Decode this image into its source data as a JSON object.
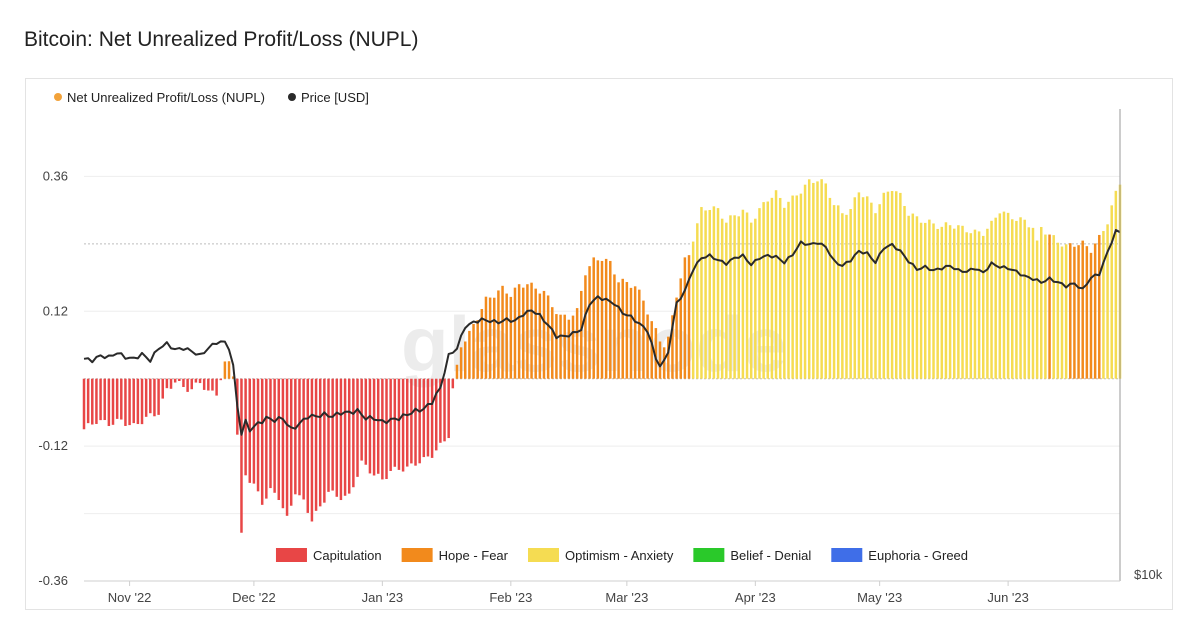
{
  "page_title": "Bitcoin: Net Unrealized Profit/Loss (NUPL)",
  "watermark": "glassnode",
  "colors": {
    "capitulation": "#e84646",
    "hope_fear": "#f28a1c",
    "optimism_anxiety": "#f5dc52",
    "belief_denial": "#2ac92a",
    "euphoria_greed": "#3f6ee8",
    "price_line": "#2a2a2a",
    "nupl_legend_dot": "#f2a23a"
  },
  "chart_data": {
    "type": "bar",
    "title": "Bitcoin: Net Unrealized Profit/Loss (NUPL)",
    "series_legend": [
      {
        "name": "Net Unrealized Profit/Loss (NUPL)",
        "color_key": "nupl_legend_dot"
      },
      {
        "name": "Price [USD]",
        "color_key": "price_line"
      }
    ],
    "zone_legend": [
      {
        "name": "Capitulation",
        "color_key": "capitulation"
      },
      {
        "name": "Hope - Fear",
        "color_key": "hope_fear"
      },
      {
        "name": "Optimism - Anxiety",
        "color_key": "optimism_anxiety"
      },
      {
        "name": "Belief - Denial",
        "color_key": "belief_denial"
      },
      {
        "name": "Euphoria - Greed",
        "color_key": "euphoria_greed"
      }
    ],
    "y_axis": {
      "ticks": [
        "0.36",
        "0.12",
        "-0.12",
        "-0.36"
      ],
      "tick_values": [
        0.36,
        0.12,
        -0.12,
        -0.36
      ],
      "ylim": [
        -0.36,
        0.48
      ]
    },
    "right_axis_tick": "$10k",
    "x_axis": {
      "tick_labels": [
        "Nov '22",
        "Dec '22",
        "Jan '23",
        "Feb '23",
        "Mar '23",
        "Apr '23",
        "May '23",
        "Jun '23"
      ],
      "tick_days": [
        11,
        41,
        72,
        103,
        131,
        162,
        192,
        223
      ],
      "start": "2022-10-21",
      "days": 250
    },
    "nupl_anchors": [
      [
        0,
        -0.09
      ],
      [
        3,
        -0.075
      ],
      [
        6,
        -0.08
      ],
      [
        9,
        -0.075
      ],
      [
        12,
        -0.085
      ],
      [
        15,
        -0.07
      ],
      [
        18,
        -0.06
      ],
      [
        20,
        -0.02
      ],
      [
        22,
        -0.005
      ],
      [
        24,
        -0.015
      ],
      [
        26,
        -0.02
      ],
      [
        28,
        -0.005
      ],
      [
        30,
        -0.025
      ],
      [
        32,
        -0.025
      ],
      [
        34,
        0.025
      ],
      [
        35,
        0.03
      ],
      [
        36,
        0.01
      ],
      [
        37,
        -0.1
      ],
      [
        38,
        -0.28
      ],
      [
        39,
        -0.17
      ],
      [
        41,
        -0.19
      ],
      [
        43,
        -0.22
      ],
      [
        45,
        -0.2
      ],
      [
        47,
        -0.21
      ],
      [
        49,
        -0.25
      ],
      [
        51,
        -0.2
      ],
      [
        53,
        -0.22
      ],
      [
        55,
        -0.25
      ],
      [
        57,
        -0.23
      ],
      [
        59,
        -0.2
      ],
      [
        61,
        -0.21
      ],
      [
        64,
        -0.21
      ],
      [
        67,
        -0.15
      ],
      [
        70,
        -0.17
      ],
      [
        72,
        -0.18
      ],
      [
        74,
        -0.165
      ],
      [
        76,
        -0.16
      ],
      [
        78,
        -0.16
      ],
      [
        80,
        -0.15
      ],
      [
        82,
        -0.145
      ],
      [
        84,
        -0.135
      ],
      [
        86,
        -0.12
      ],
      [
        88,
        -0.1
      ],
      [
        89,
        -0.02
      ],
      [
        90,
        0.02
      ],
      [
        91,
        0.06
      ],
      [
        93,
        0.08
      ],
      [
        95,
        0.11
      ],
      [
        97,
        0.14
      ],
      [
        99,
        0.15
      ],
      [
        101,
        0.16
      ],
      [
        103,
        0.15
      ],
      [
        105,
        0.165
      ],
      [
        107,
        0.17
      ],
      [
        109,
        0.16
      ],
      [
        111,
        0.155
      ],
      [
        113,
        0.13
      ],
      [
        115,
        0.11
      ],
      [
        117,
        0.11
      ],
      [
        119,
        0.12
      ],
      [
        121,
        0.19
      ],
      [
        123,
        0.21
      ],
      [
        125,
        0.215
      ],
      [
        127,
        0.205
      ],
      [
        129,
        0.175
      ],
      [
        131,
        0.17
      ],
      [
        133,
        0.165
      ],
      [
        135,
        0.14
      ],
      [
        137,
        0.1
      ],
      [
        139,
        0.07
      ],
      [
        140,
        0.06
      ],
      [
        141,
        0.07
      ],
      [
        143,
        0.15
      ],
      [
        145,
        0.21
      ],
      [
        146,
        0.22
      ],
      [
        147,
        0.25
      ],
      [
        149,
        0.3
      ],
      [
        151,
        0.305
      ],
      [
        153,
        0.3
      ],
      [
        155,
        0.28
      ],
      [
        157,
        0.29
      ],
      [
        159,
        0.3
      ],
      [
        161,
        0.28
      ],
      [
        163,
        0.3
      ],
      [
        165,
        0.32
      ],
      [
        167,
        0.33
      ],
      [
        169,
        0.31
      ],
      [
        171,
        0.32
      ],
      [
        173,
        0.335
      ],
      [
        175,
        0.35
      ],
      [
        177,
        0.355
      ],
      [
        179,
        0.345
      ],
      [
        181,
        0.31
      ],
      [
        183,
        0.295
      ],
      [
        185,
        0.3
      ],
      [
        187,
        0.335
      ],
      [
        189,
        0.32
      ],
      [
        191,
        0.3
      ],
      [
        193,
        0.325
      ],
      [
        195,
        0.34
      ],
      [
        197,
        0.325
      ],
      [
        199,
        0.295
      ],
      [
        201,
        0.285
      ],
      [
        203,
        0.28
      ],
      [
        205,
        0.275
      ],
      [
        207,
        0.27
      ],
      [
        209,
        0.275
      ],
      [
        211,
        0.27
      ],
      [
        213,
        0.265
      ],
      [
        215,
        0.26
      ],
      [
        217,
        0.26
      ],
      [
        219,
        0.275
      ],
      [
        221,
        0.3
      ],
      [
        223,
        0.29
      ],
      [
        225,
        0.285
      ],
      [
        227,
        0.28
      ],
      [
        229,
        0.27
      ],
      [
        230,
        0.24
      ],
      [
        231,
        0.27
      ],
      [
        233,
        0.255
      ],
      [
        235,
        0.245
      ],
      [
        237,
        0.235
      ],
      [
        239,
        0.24
      ],
      [
        241,
        0.24
      ],
      [
        243,
        0.23
      ],
      [
        245,
        0.25
      ],
      [
        247,
        0.28
      ],
      [
        249,
        0.33
      ],
      [
        250,
        0.35
      ]
    ],
    "hope_fear_override_days": [
      233,
      238,
      239,
      240,
      241,
      242,
      243,
      244,
      245
    ],
    "price_anchors": [
      [
        0,
        20300
      ],
      [
        2,
        20200
      ],
      [
        4,
        20500
      ],
      [
        6,
        20400
      ],
      [
        8,
        20700
      ],
      [
        10,
        20400
      ],
      [
        12,
        20300
      ],
      [
        14,
        20600
      ],
      [
        16,
        20200
      ],
      [
        18,
        21000
      ],
      [
        20,
        21300
      ],
      [
        22,
        20900
      ],
      [
        24,
        21000
      ],
      [
        26,
        20800
      ],
      [
        28,
        20500
      ],
      [
        30,
        21000
      ],
      [
        32,
        21400
      ],
      [
        34,
        21400
      ],
      [
        35,
        21000
      ],
      [
        36,
        19800
      ],
      [
        37,
        17500
      ],
      [
        38,
        16000
      ],
      [
        39,
        16600
      ],
      [
        40,
        16200
      ],
      [
        42,
        16500
      ],
      [
        44,
        16800
      ],
      [
        46,
        16700
      ],
      [
        48,
        16800
      ],
      [
        50,
        16200
      ],
      [
        52,
        16500
      ],
      [
        54,
        16900
      ],
      [
        56,
        16900
      ],
      [
        58,
        17000
      ],
      [
        60,
        16900
      ],
      [
        62,
        17100
      ],
      [
        64,
        17100
      ],
      [
        66,
        17200
      ],
      [
        68,
        16800
      ],
      [
        70,
        16800
      ],
      [
        72,
        16600
      ],
      [
        74,
        16700
      ],
      [
        76,
        16800
      ],
      [
        78,
        17000
      ],
      [
        80,
        17200
      ],
      [
        82,
        17300
      ],
      [
        84,
        17700
      ],
      [
        86,
        18500
      ],
      [
        88,
        20500
      ],
      [
        90,
        21000
      ],
      [
        92,
        22500
      ],
      [
        94,
        22800
      ],
      [
        96,
        23000
      ],
      [
        98,
        22900
      ],
      [
        100,
        22800
      ],
      [
        102,
        23000
      ],
      [
        104,
        22900
      ],
      [
        106,
        23400
      ],
      [
        108,
        23700
      ],
      [
        110,
        23300
      ],
      [
        112,
        22600
      ],
      [
        114,
        21800
      ],
      [
        116,
        21800
      ],
      [
        118,
        22000
      ],
      [
        120,
        22300
      ],
      [
        122,
        24200
      ],
      [
        124,
        24700
      ],
      [
        126,
        24500
      ],
      [
        128,
        24200
      ],
      [
        130,
        23500
      ],
      [
        132,
        23200
      ],
      [
        134,
        22700
      ],
      [
        136,
        22200
      ],
      [
        138,
        20300
      ],
      [
        139,
        19900
      ],
      [
        140,
        20100
      ],
      [
        141,
        20800
      ],
      [
        142,
        22500
      ],
      [
        143,
        24200
      ],
      [
        145,
        25200
      ],
      [
        147,
        27000
      ],
      [
        149,
        28000
      ],
      [
        151,
        28200
      ],
      [
        153,
        27800
      ],
      [
        155,
        27500
      ],
      [
        157,
        28000
      ],
      [
        159,
        28200
      ],
      [
        161,
        27400
      ],
      [
        163,
        28000
      ],
      [
        165,
        28200
      ],
      [
        167,
        28100
      ],
      [
        169,
        27600
      ],
      [
        171,
        28300
      ],
      [
        173,
        29400
      ],
      [
        175,
        29200
      ],
      [
        177,
        29400
      ],
      [
        179,
        29000
      ],
      [
        181,
        27700
      ],
      [
        183,
        27300
      ],
      [
        185,
        27800
      ],
      [
        187,
        28600
      ],
      [
        189,
        28400
      ],
      [
        191,
        27600
      ],
      [
        193,
        28900
      ],
      [
        195,
        29200
      ],
      [
        197,
        28600
      ],
      [
        199,
        27700
      ],
      [
        201,
        27000
      ],
      [
        203,
        27200
      ],
      [
        205,
        26900
      ],
      [
        207,
        27100
      ],
      [
        209,
        27300
      ],
      [
        211,
        26900
      ],
      [
        213,
        26800
      ],
      [
        215,
        27100
      ],
      [
        217,
        26700
      ],
      [
        219,
        27500
      ],
      [
        221,
        27200
      ],
      [
        223,
        27100
      ],
      [
        225,
        26800
      ],
      [
        227,
        26400
      ],
      [
        229,
        26200
      ],
      [
        231,
        25900
      ],
      [
        233,
        26200
      ],
      [
        235,
        25900
      ],
      [
        237,
        25600
      ],
      [
        239,
        25800
      ],
      [
        241,
        25300
      ],
      [
        243,
        26300
      ],
      [
        245,
        26600
      ],
      [
        247,
        28500
      ],
      [
        249,
        30500
      ],
      [
        250,
        30400
      ]
    ]
  }
}
